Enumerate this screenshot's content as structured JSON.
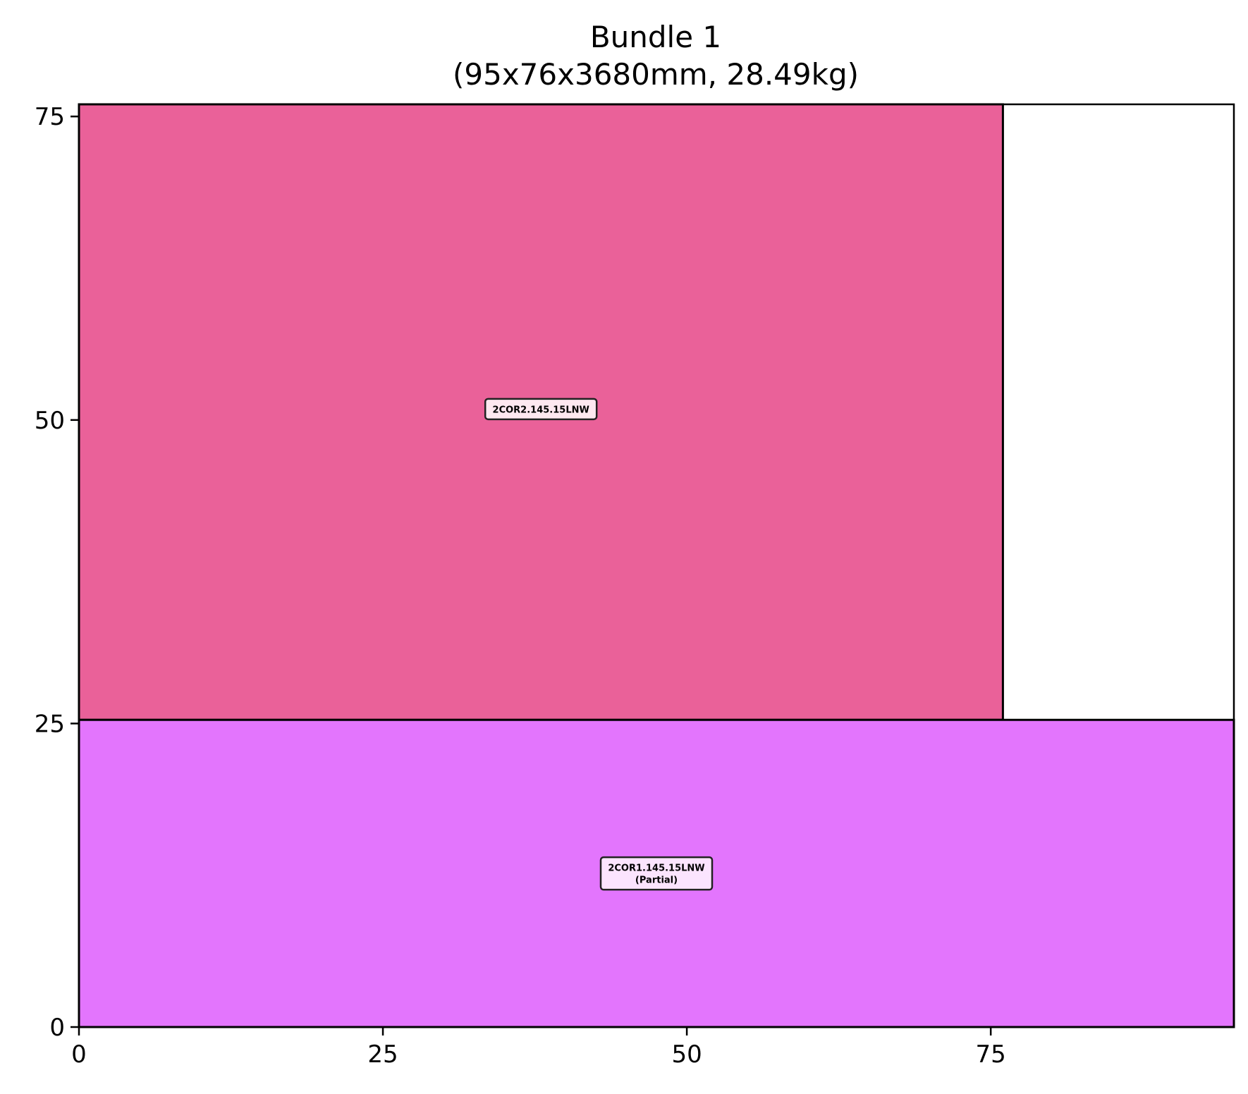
{
  "chart_data": {
    "type": "rectangle-packing",
    "title_line1": "Bundle 1",
    "title_line2": "(95x76x3680mm, 28.49kg)",
    "xlim": [
      0,
      95
    ],
    "ylim": [
      0,
      76
    ],
    "xticks": [
      0,
      25,
      50,
      75
    ],
    "yticks": [
      0,
      25,
      50,
      75
    ],
    "grid": false,
    "items": [
      {
        "x": 0,
        "y": 25.3,
        "w": 76,
        "h": 50.7,
        "color": "#ea6199",
        "label_bg": "#fde8f0",
        "label": [
          "2COR2.145.15LNW"
        ],
        "label_pos": [
          38,
          50.9
        ]
      },
      {
        "x": 0,
        "y": 0,
        "w": 95,
        "h": 25.3,
        "color": "#e375fd",
        "label_bg": "#fbe4fe",
        "label": [
          "2COR1.145.15LNW",
          "(Partial)"
        ],
        "label_pos": [
          47.5,
          12.65
        ]
      }
    ]
  }
}
